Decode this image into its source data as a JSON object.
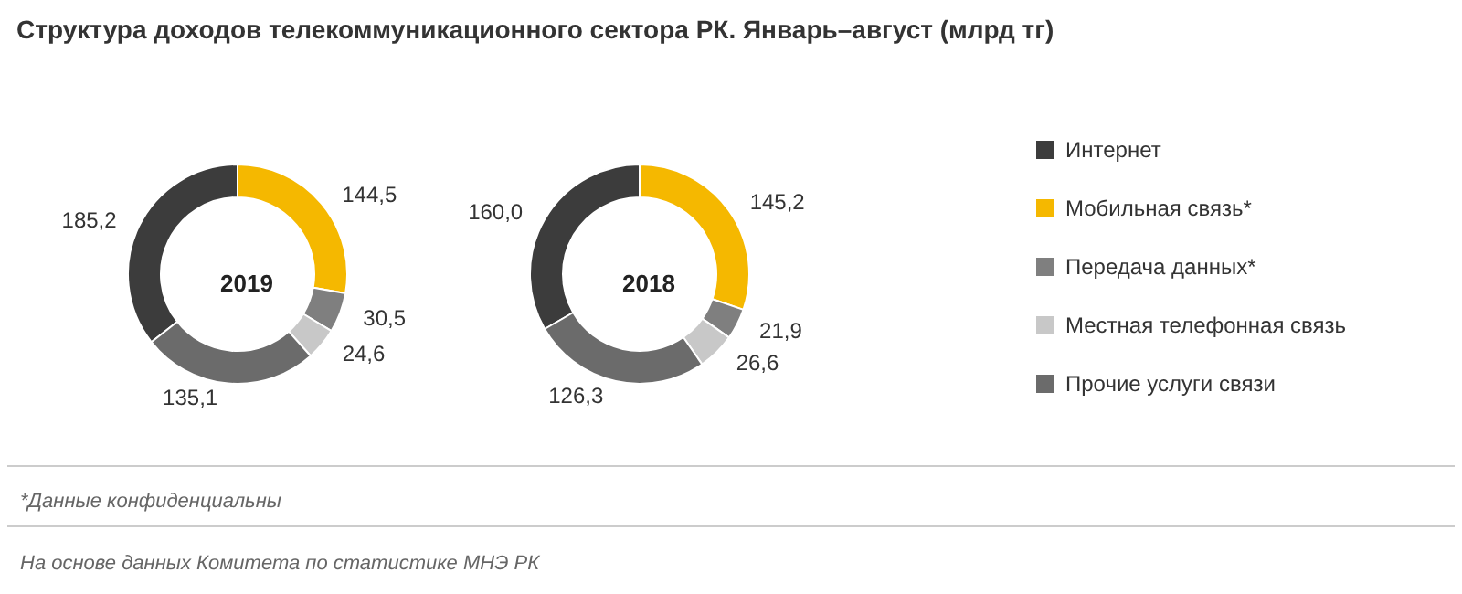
{
  "chart_data": {
    "type": "donut",
    "title": "Структура доходов телекоммуникационного сектора РК. Январь–август (млрд тг)",
    "categories": [
      "Интернет",
      "Мобильная связь*",
      "Передача данных*",
      "Местная телефонная связь",
      "Прочие услуги связи"
    ],
    "colors": [
      "#3c3c3c",
      "#f5b800",
      "#7f7f7f",
      "#c8c8c8",
      "#6b6b6b"
    ],
    "legend": "right",
    "series": [
      {
        "name": "2019",
        "values": [
          185.2,
          144.5,
          30.5,
          24.6,
          135.1
        ],
        "value_labels": [
          "185,2",
          "144,5",
          "30,5",
          "24,6",
          "135,1"
        ]
      },
      {
        "name": "2018",
        "values": [
          160.0,
          145.2,
          21.9,
          26.6,
          126.3
        ],
        "value_labels": [
          "160,0",
          "145,2",
          "21,9",
          "26,6",
          "126,3"
        ]
      }
    ],
    "annotations": [
      "*Данные конфиденциальны",
      "На основе данных Комитета по статистике МНЭ РК"
    ]
  }
}
